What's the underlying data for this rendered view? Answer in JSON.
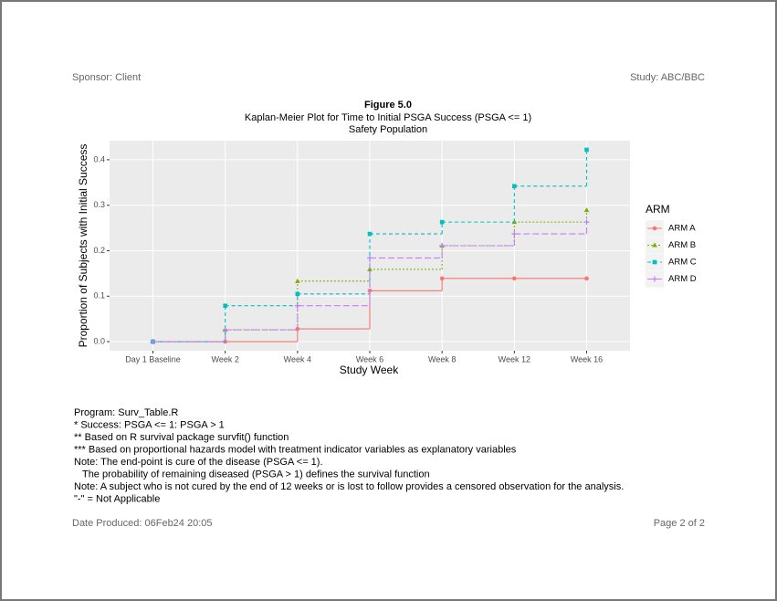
{
  "header": {
    "sponsor": "Sponsor: Client",
    "study": "Study: ABC/BBC"
  },
  "chart_data": {
    "type": "step",
    "title": "Figure 5.0",
    "subtitle": "Kaplan-Meier Plot for Time to Initial PSGA Success (PSGA <= 1)",
    "population": "Safety Population",
    "x_label": "Study Week",
    "y_label": "Proportion of Subjects with Initial Success",
    "categories": [
      "Day 1 Baseline",
      "Week 2",
      "Week 4",
      "Week 6",
      "Week 8",
      "Week 12",
      "Week 16"
    ],
    "ylim": [
      -0.02,
      0.442
    ],
    "yticks": [
      {
        "value": 0,
        "label": "0.0"
      },
      0.1,
      0.2,
      0.3,
      0.4
    ],
    "grid": true,
    "legend_title": "ARM",
    "legend_position": "right",
    "series": [
      {
        "name": "ARM A",
        "color": "#F8766D",
        "values": [
          0,
          0,
          0.028,
          0.112,
          0.139,
          0.139,
          0.139
        ]
      },
      {
        "name": "ARM B",
        "color": "#7CAE00",
        "values": [
          0,
          0.026,
          0.133,
          0.159,
          0.211,
          0.263,
          0.289
        ]
      },
      {
        "name": "ARM C",
        "color": "#00BFC4",
        "values": [
          0,
          0.079,
          0.105,
          0.237,
          0.263,
          0.342,
          0.422
        ]
      },
      {
        "name": "ARM D",
        "color": "#C77CFF",
        "values": [
          0,
          0.026,
          0.079,
          0.184,
          0.211,
          0.237,
          0.263
        ]
      }
    ]
  },
  "notes": [
    "Program: Surv_Table.R",
    "* Success: PSGA <= 1: PSGA > 1",
    "** Based on R survival package survfit() function",
    "*** Based on proportional hazards model with treatment indicator variables as explanatory variables",
    "Note: The end-point is cure of the disease (PSGA <= 1).",
    "   The probability of remaining diseased (PSGA > 1) defines the survival function",
    "Note: A subject who is not cured by the end of 12 weeks or is lost to follow provides a censored observation for the analysis.",
    "\"-\" = Not Applicable"
  ],
  "footer": {
    "date_produced": "Date Produced: 06Feb24 20:05",
    "page": "Page 2 of 2"
  }
}
